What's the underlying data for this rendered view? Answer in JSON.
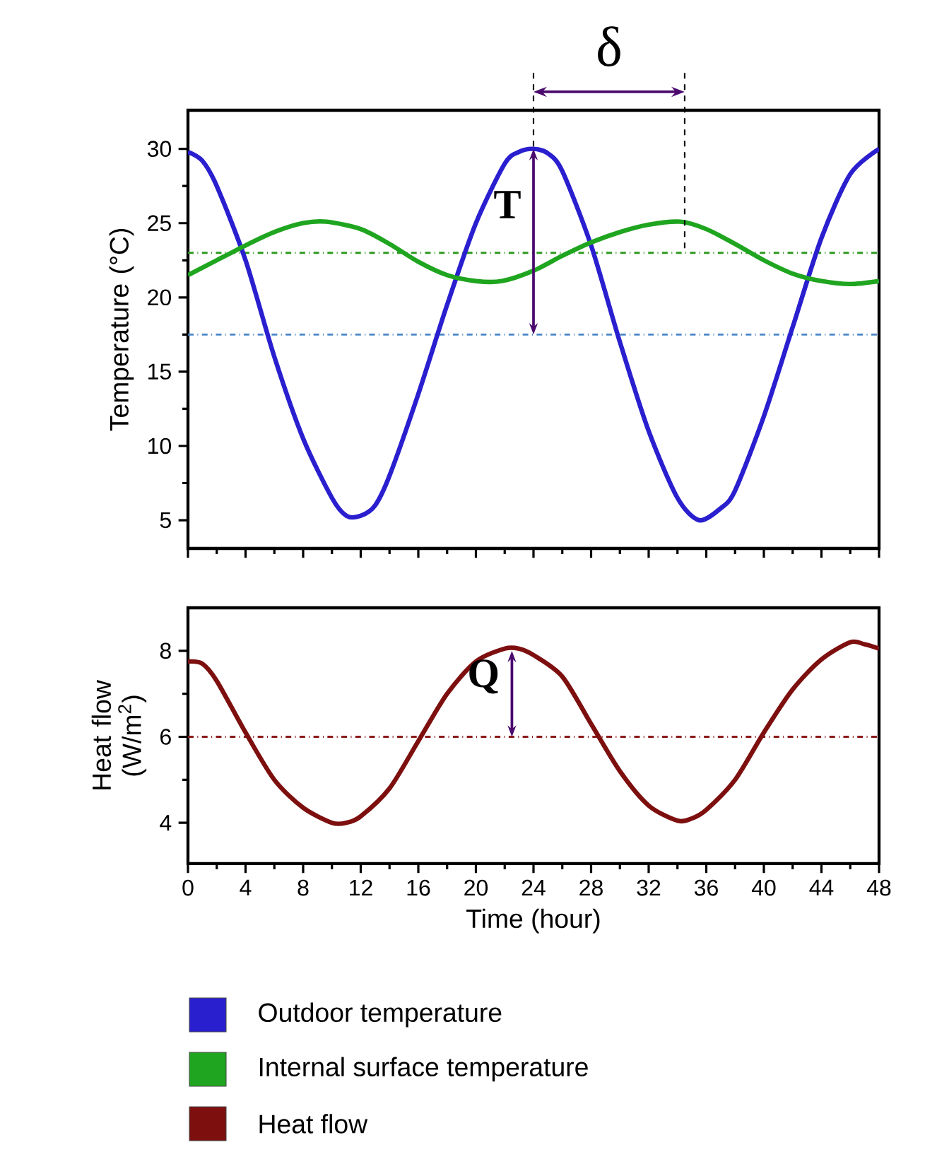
{
  "chart_data": [
    {
      "type": "line",
      "ylabel": "Temperature (°C)",
      "xlim": [
        0,
        48
      ],
      "xticks": [
        0,
        4,
        8,
        12,
        16,
        20,
        24,
        28,
        32,
        36,
        40,
        44,
        48
      ],
      "ylim": [
        3.1,
        32.6
      ],
      "yticks": [
        5,
        10,
        15,
        20,
        25,
        30
      ],
      "tick_labels": "y",
      "marker": "none",
      "line_style": "solid",
      "grid": false,
      "legend": "bottom",
      "series": [
        {
          "name": "Outdoor temperature",
          "color": "#2a1fcf",
          "x": [
            0,
            1,
            2,
            4,
            6,
            8,
            10,
            11,
            12,
            13,
            14,
            16,
            18,
            20,
            22,
            23,
            24,
            25,
            26,
            28,
            30,
            32,
            34,
            35.5,
            37,
            38,
            40,
            42,
            44,
            46,
            48
          ],
          "values": [
            29.8,
            29.2,
            27.5,
            22.5,
            16,
            10.5,
            6.5,
            5.3,
            5.3,
            6,
            8,
            13.5,
            19.5,
            25,
            29,
            29.8,
            30,
            29.7,
            28.5,
            23.5,
            17,
            11,
            6.5,
            5,
            5.8,
            7,
            12,
            18,
            24,
            28.3,
            30
          ]
        },
        {
          "name": "Internal surface temperature",
          "color": "#1fa51f",
          "x": [
            0,
            2,
            4,
            6,
            8,
            9.6,
            12,
            14,
            16,
            18,
            20,
            21.8,
            24,
            26,
            28,
            30,
            32,
            34.2,
            36,
            38,
            40,
            42,
            44,
            46,
            48
          ],
          "values": [
            21.5,
            22.5,
            23.5,
            24.4,
            25,
            25.1,
            24.6,
            23.6,
            22.4,
            21.5,
            21.1,
            21.1,
            21.8,
            22.8,
            23.7,
            24.4,
            24.9,
            25.1,
            24.6,
            23.6,
            22.5,
            21.6,
            21.1,
            20.9,
            21.1
          ]
        }
      ],
      "ref_lines": [
        {
          "axis": "y",
          "value": 23,
          "color": "#2e9a1e",
          "line_style": "dashdot"
        },
        {
          "axis": "y",
          "value": 17.5,
          "color": "#4a86c8",
          "line_style": "dashdot"
        }
      ],
      "annotations": [
        {
          "text": "δ",
          "x": 34.5,
          "y": 23
        },
        {
          "text": "T",
          "x": 24,
          "y": 30
        }
      ]
    },
    {
      "type": "line",
      "xlabel": "Time (hour)",
      "ylabel": "Heat flow (W/m$^{2}$)",
      "xlim": [
        0,
        48
      ],
      "xticks": [
        0,
        4,
        8,
        12,
        16,
        20,
        24,
        28,
        32,
        36,
        40,
        44,
        48
      ],
      "ylim": [
        3.05,
        9
      ],
      "yticks": [
        4,
        6,
        8
      ],
      "marker": "none",
      "line_style": "solid",
      "grid": false,
      "legend": "bottom",
      "series": [
        {
          "name": "Heat flow",
          "color": "#7d0f0f",
          "x": [
            0,
            1,
            2,
            4,
            6,
            8,
            10,
            11,
            12,
            14,
            16,
            18,
            20,
            22,
            23,
            24,
            26,
            28,
            30,
            32,
            34,
            35,
            36,
            38,
            40,
            42,
            44,
            46,
            47,
            48
          ],
          "values": [
            7.75,
            7.7,
            7.3,
            6.1,
            5.0,
            4.35,
            4.0,
            4.0,
            4.15,
            4.8,
            5.9,
            7.0,
            7.75,
            8.05,
            8.05,
            7.9,
            7.4,
            6.3,
            5.2,
            4.4,
            4.05,
            4.1,
            4.3,
            5.0,
            6.1,
            7.1,
            7.8,
            8.2,
            8.15,
            8.05
          ]
        }
      ],
      "ref_lines": [
        {
          "axis": "y",
          "value": 6,
          "color": "#8b1a1a",
          "line_style": "dashdot"
        }
      ],
      "annotations": [
        {
          "text": "Q",
          "x": 22.5,
          "y": 8
        }
      ]
    }
  ]
}
